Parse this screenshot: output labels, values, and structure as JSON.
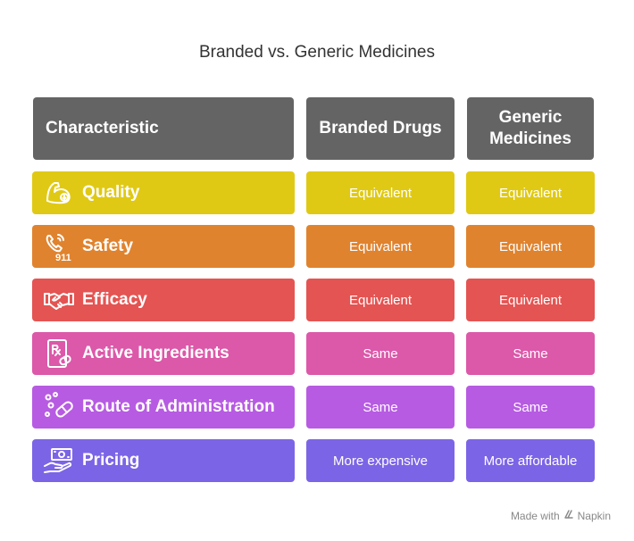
{
  "title": "Branded vs. Generic Medicines",
  "headers": [
    "Characteristic",
    "Branded Drugs",
    "Generic Medicines"
  ],
  "header_color": "#646464",
  "rows": [
    {
      "label": "Quality",
      "icon": "flexed-arm-icon",
      "branded": "Equivalent",
      "generic": "Equivalent",
      "color": "#E0C914"
    },
    {
      "label": "Safety",
      "icon": "emergency-phone-911-icon",
      "branded": "Equivalent",
      "generic": "Equivalent",
      "color": "#E0832E"
    },
    {
      "label": "Efficacy",
      "icon": "handshake-icon",
      "branded": "Equivalent",
      "generic": "Equivalent",
      "color": "#E45452"
    },
    {
      "label": "Active Ingredients",
      "icon": "prescription-icon",
      "branded": "Same",
      "generic": "Same",
      "color": "#DC58A9"
    },
    {
      "label": "Route of Administration",
      "icon": "pills-icon",
      "branded": "Same",
      "generic": "Same",
      "color": "#B75BE2"
    },
    {
      "label": "Pricing",
      "icon": "money-hand-icon",
      "branded": "More expensive",
      "generic": "More affordable",
      "color": "#7C64E6"
    }
  ],
  "footer": {
    "text": "Made with",
    "brand": "Napkin"
  }
}
